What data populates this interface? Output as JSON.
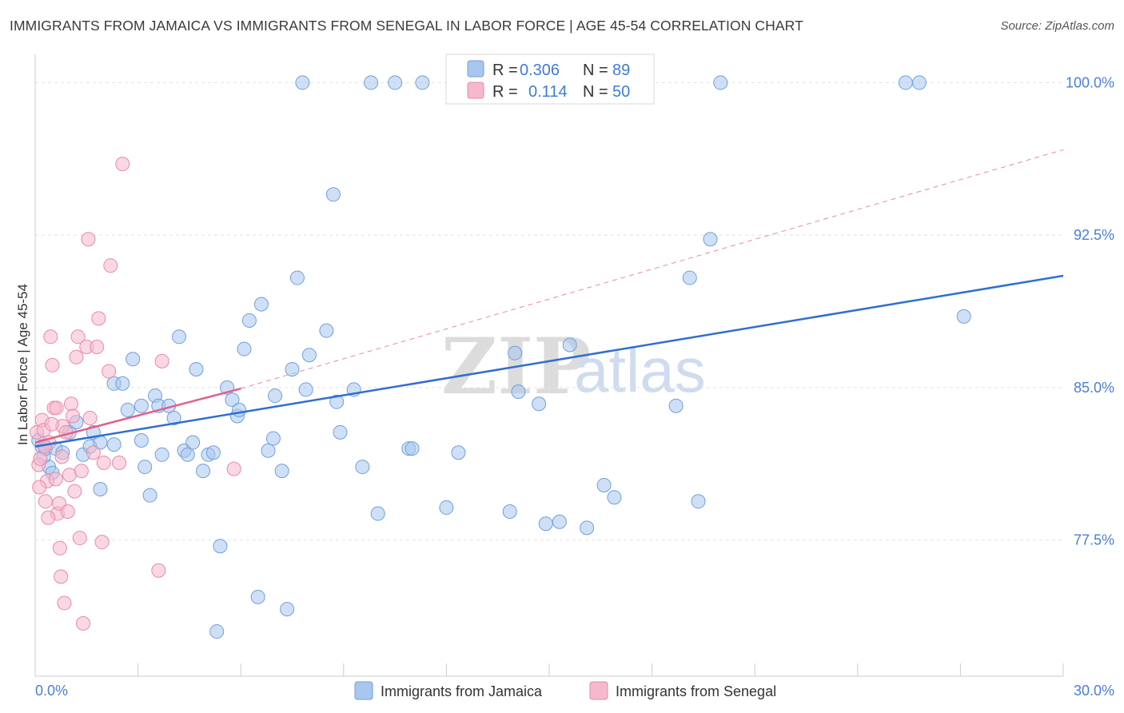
{
  "title": "IMMIGRANTS FROM JAMAICA VS IMMIGRANTS FROM SENEGAL IN LABOR FORCE | AGE 45-54 CORRELATION CHART",
  "source": "Source: ZipAtlas.com",
  "watermark": {
    "zip": "ZIP",
    "atlas": "atlas"
  },
  "colors": {
    "jamaica_fill": "#a8c6ee",
    "jamaica_stroke": "#6f9fdc",
    "jamaica_line": "#2d6fd0",
    "senegal_fill": "#f6b8cc",
    "senegal_stroke": "#e88aa8",
    "senegal_line": "#e0608a",
    "axis_text": "#4a7fd4",
    "grid": "#e2e2e2"
  },
  "stats": {
    "r_label": "R =",
    "n_label": "N =",
    "rows": [
      {
        "r": "0.306",
        "n": "89"
      },
      {
        "r": "0.114",
        "n": "50"
      }
    ]
  },
  "chart_data": {
    "type": "scatter",
    "title": "IMMIGRANTS FROM JAMAICA VS IMMIGRANTS FROM SENEGAL IN LABOR FORCE | AGE 45-54 CORRELATION CHART",
    "xlabel": "",
    "ylabel": "In Labor Force | Age 45-54",
    "xlim": [
      0,
      30
    ],
    "ylim": [
      70.8,
      101.0
    ],
    "x_tick_labels": [
      {
        "value": 0,
        "label": "0.0%"
      },
      {
        "value": 30,
        "label": "30.0%"
      }
    ],
    "y_ticks": [
      {
        "value": 77.5,
        "label": "77.5%"
      },
      {
        "value": 85.0,
        "label": "85.0%"
      },
      {
        "value": 92.5,
        "label": "92.5%"
      },
      {
        "value": 100.0,
        "label": "100.0%"
      }
    ],
    "grid": true,
    "legend_position": "bottom-center",
    "series": [
      {
        "name": "Immigrants from Jamaica",
        "r": 0.306,
        "n": 89,
        "trend": {
          "x": [
            0,
            30
          ],
          "y": [
            82.1,
            90.5
          ],
          "style": "solid"
        },
        "points": [
          [
            0.1,
            82.4
          ],
          [
            0.2,
            82.1
          ],
          [
            0.25,
            81.6
          ],
          [
            0.3,
            82.0
          ],
          [
            0.4,
            81.1
          ],
          [
            0.5,
            80.8
          ],
          [
            0.6,
            82.0
          ],
          [
            0.8,
            81.8
          ],
          [
            1.0,
            82.8
          ],
          [
            1.2,
            83.3
          ],
          [
            1.4,
            81.7
          ],
          [
            1.6,
            82.1
          ],
          [
            1.7,
            82.8
          ],
          [
            1.9,
            82.3
          ],
          [
            1.9,
            80.0
          ],
          [
            2.3,
            82.2
          ],
          [
            2.3,
            85.2
          ],
          [
            2.55,
            85.2
          ],
          [
            2.7,
            83.9
          ],
          [
            2.85,
            86.4
          ],
          [
            3.1,
            84.1
          ],
          [
            3.1,
            82.4
          ],
          [
            3.2,
            81.1
          ],
          [
            3.35,
            79.7
          ],
          [
            3.5,
            84.6
          ],
          [
            3.6,
            84.1
          ],
          [
            3.7,
            81.7
          ],
          [
            3.9,
            84.1
          ],
          [
            4.05,
            83.5
          ],
          [
            4.2,
            87.5
          ],
          [
            4.35,
            81.9
          ],
          [
            4.45,
            81.7
          ],
          [
            4.6,
            82.3
          ],
          [
            4.7,
            85.9
          ],
          [
            4.9,
            80.9
          ],
          [
            5.05,
            81.7
          ],
          [
            5.2,
            81.8
          ],
          [
            5.4,
            77.2
          ],
          [
            5.3,
            73.0
          ],
          [
            5.6,
            85.0
          ],
          [
            5.75,
            84.4
          ],
          [
            5.9,
            83.6
          ],
          [
            5.95,
            83.9
          ],
          [
            6.1,
            86.9
          ],
          [
            6.25,
            88.3
          ],
          [
            6.5,
            74.7
          ],
          [
            6.6,
            89.1
          ],
          [
            6.8,
            81.9
          ],
          [
            6.95,
            82.5
          ],
          [
            7.0,
            84.6
          ],
          [
            7.2,
            80.9
          ],
          [
            7.35,
            74.1
          ],
          [
            7.5,
            85.9
          ],
          [
            7.65,
            90.4
          ],
          [
            7.8,
            100.0
          ],
          [
            7.9,
            84.9
          ],
          [
            8.0,
            86.6
          ],
          [
            8.5,
            87.8
          ],
          [
            8.7,
            94.5
          ],
          [
            8.8,
            84.3
          ],
          [
            8.9,
            82.8
          ],
          [
            9.3,
            84.9
          ],
          [
            9.55,
            81.1
          ],
          [
            9.8,
            100.0
          ],
          [
            10.0,
            78.8
          ],
          [
            10.5,
            100.0
          ],
          [
            10.9,
            82.0
          ],
          [
            11.0,
            82.0
          ],
          [
            11.3,
            100.0
          ],
          [
            12.0,
            79.1
          ],
          [
            12.35,
            81.8
          ],
          [
            13.85,
            78.9
          ],
          [
            14.0,
            86.7
          ],
          [
            14.1,
            84.8
          ],
          [
            14.7,
            84.2
          ],
          [
            14.9,
            78.3
          ],
          [
            15.3,
            78.4
          ],
          [
            15.6,
            87.1
          ],
          [
            16.1,
            78.1
          ],
          [
            16.6,
            80.2
          ],
          [
            16.9,
            79.6
          ],
          [
            18.7,
            84.1
          ],
          [
            19.1,
            90.4
          ],
          [
            19.35,
            79.4
          ],
          [
            19.7,
            92.3
          ],
          [
            20.0,
            100.0
          ],
          [
            25.8,
            100.0
          ],
          [
            27.1,
            88.5
          ],
          [
            25.4,
            100.0
          ]
        ]
      },
      {
        "name": "Immigrants from Senegal",
        "r": 0.114,
        "n": 50,
        "trend": {
          "x": [
            0,
            6
          ],
          "y": [
            82.3,
            84.95
          ],
          "style": "solid"
        },
        "trend_extension": {
          "x": [
            6,
            30
          ],
          "y": [
            84.95,
            96.7
          ],
          "style": "dashed"
        },
        "points": [
          [
            0.05,
            82.8
          ],
          [
            0.1,
            81.2
          ],
          [
            0.15,
            81.5
          ],
          [
            0.2,
            83.4
          ],
          [
            0.25,
            82.9
          ],
          [
            0.3,
            79.4
          ],
          [
            0.35,
            80.4
          ],
          [
            0.4,
            82.3
          ],
          [
            0.45,
            87.5
          ],
          [
            0.5,
            86.1
          ],
          [
            0.55,
            84.0
          ],
          [
            0.6,
            80.5
          ],
          [
            0.65,
            78.8
          ],
          [
            0.7,
            79.3
          ],
          [
            0.72,
            77.1
          ],
          [
            0.75,
            75.7
          ],
          [
            0.8,
            83.1
          ],
          [
            0.85,
            74.4
          ],
          [
            0.9,
            82.8
          ],
          [
            0.95,
            78.9
          ],
          [
            1.0,
            80.7
          ],
          [
            1.05,
            84.2
          ],
          [
            1.1,
            83.6
          ],
          [
            1.15,
            79.9
          ],
          [
            1.2,
            86.5
          ],
          [
            1.25,
            87.5
          ],
          [
            1.3,
            77.6
          ],
          [
            1.35,
            80.9
          ],
          [
            1.4,
            73.4
          ],
          [
            1.5,
            87.0
          ],
          [
            1.55,
            92.3
          ],
          [
            1.6,
            83.5
          ],
          [
            1.7,
            81.8
          ],
          [
            1.8,
            87.0
          ],
          [
            1.85,
            88.4
          ],
          [
            1.95,
            77.4
          ],
          [
            2.0,
            81.3
          ],
          [
            2.15,
            85.8
          ],
          [
            2.2,
            91.0
          ],
          [
            2.45,
            81.3
          ],
          [
            2.55,
            96.0
          ],
          [
            3.6,
            76.0
          ],
          [
            3.7,
            86.3
          ],
          [
            5.8,
            81.0
          ],
          [
            0.28,
            82.1
          ],
          [
            0.48,
            83.2
          ],
          [
            0.62,
            84.0
          ],
          [
            0.78,
            81.6
          ],
          [
            0.12,
            80.1
          ],
          [
            0.38,
            78.6
          ]
        ]
      }
    ]
  }
}
